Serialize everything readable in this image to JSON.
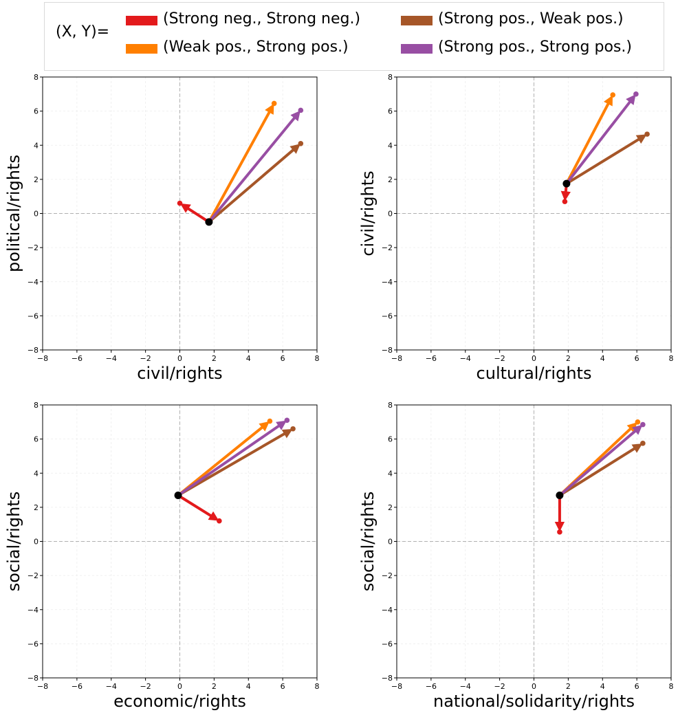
{
  "legend": {
    "prefix": "(X, Y)=",
    "items": [
      {
        "label": "(Strong neg., Strong neg.)",
        "color": "#e31a1c"
      },
      {
        "label": "(Weak pos., Strong pos.)",
        "color": "#ff7f00"
      },
      {
        "label": "(Strong pos., Weak pos.)",
        "color": "#a65628"
      },
      {
        "label": "(Strong pos., Strong pos.)",
        "color": "#984ea3"
      }
    ]
  },
  "chart_data": [
    {
      "type": "scatter",
      "xlabel": "civil/rights",
      "ylabel": "political/rights",
      "xlim": [
        -8,
        8
      ],
      "ylim": [
        -8,
        8
      ],
      "xticks": [
        -8,
        -6,
        -4,
        -2,
        0,
        2,
        4,
        6,
        8
      ],
      "yticks": [
        -8,
        -6,
        -4,
        -2,
        0,
        2,
        4,
        6,
        8
      ],
      "grid": true,
      "origin": {
        "x": 1.7,
        "y": -0.5
      },
      "arrows": [
        {
          "series": "(Strong neg., Strong neg.)",
          "x": 0.0,
          "y": 0.6,
          "color": "#e31a1c"
        },
        {
          "series": "(Weak pos., Strong pos.)",
          "x": 5.5,
          "y": 6.45,
          "color": "#ff7f00"
        },
        {
          "series": "(Strong pos., Weak pos.)",
          "x": 7.05,
          "y": 4.1,
          "color": "#a65628"
        },
        {
          "series": "(Strong pos., Strong pos.)",
          "x": 7.05,
          "y": 6.05,
          "color": "#984ea3"
        }
      ]
    },
    {
      "type": "scatter",
      "xlabel": "cultural/rights",
      "ylabel": "civil/rights",
      "xlim": [
        -8,
        8
      ],
      "ylim": [
        -8,
        8
      ],
      "xticks": [
        -8,
        -6,
        -4,
        -2,
        0,
        2,
        4,
        6,
        8
      ],
      "yticks": [
        -8,
        -6,
        -4,
        -2,
        0,
        2,
        4,
        6,
        8
      ],
      "grid": true,
      "origin": {
        "x": 1.9,
        "y": 1.75
      },
      "arrows": [
        {
          "series": "(Strong neg., Strong neg.)",
          "x": 1.8,
          "y": 0.7,
          "color": "#e31a1c"
        },
        {
          "series": "(Weak pos., Strong pos.)",
          "x": 4.6,
          "y": 6.95,
          "color": "#ff7f00"
        },
        {
          "series": "(Strong pos., Weak pos.)",
          "x": 6.6,
          "y": 4.65,
          "color": "#a65628"
        },
        {
          "series": "(Strong pos., Strong pos.)",
          "x": 5.95,
          "y": 7.0,
          "color": "#984ea3"
        }
      ]
    },
    {
      "type": "scatter",
      "xlabel": "economic/rights",
      "ylabel": "social/rights",
      "xlim": [
        -8,
        8
      ],
      "ylim": [
        -8,
        8
      ],
      "xticks": [
        -8,
        -6,
        -4,
        -2,
        0,
        2,
        4,
        6,
        8
      ],
      "yticks": [
        -8,
        -6,
        -4,
        -2,
        0,
        2,
        4,
        6,
        8
      ],
      "grid": true,
      "origin": {
        "x": -0.1,
        "y": 2.7
      },
      "arrows": [
        {
          "series": "(Strong neg., Strong neg.)",
          "x": 2.3,
          "y": 1.2,
          "color": "#e31a1c"
        },
        {
          "series": "(Weak pos., Strong pos.)",
          "x": 5.25,
          "y": 7.05,
          "color": "#ff7f00"
        },
        {
          "series": "(Strong pos., Weak pos.)",
          "x": 6.6,
          "y": 6.6,
          "color": "#a65628"
        },
        {
          "series": "(Strong pos., Strong pos.)",
          "x": 6.25,
          "y": 7.1,
          "color": "#984ea3"
        }
      ]
    },
    {
      "type": "scatter",
      "xlabel": "national/solidarity/rights",
      "ylabel": "social/rights",
      "xlim": [
        -8,
        8
      ],
      "ylim": [
        -8,
        8
      ],
      "xticks": [
        -8,
        -6,
        -4,
        -2,
        0,
        2,
        4,
        6,
        8
      ],
      "yticks": [
        -8,
        -6,
        -4,
        -2,
        0,
        2,
        4,
        6,
        8
      ],
      "grid": true,
      "origin": {
        "x": 1.5,
        "y": 2.7
      },
      "arrows": [
        {
          "series": "(Strong neg., Strong neg.)",
          "x": 1.5,
          "y": 0.55,
          "color": "#e31a1c"
        },
        {
          "series": "(Weak pos., Strong pos.)",
          "x": 6.05,
          "y": 7.0,
          "color": "#ff7f00"
        },
        {
          "series": "(Strong pos., Weak pos.)",
          "x": 6.35,
          "y": 5.75,
          "color": "#a65628"
        },
        {
          "series": "(Strong pos., Strong pos.)",
          "x": 6.35,
          "y": 6.85,
          "color": "#984ea3"
        }
      ]
    }
  ]
}
